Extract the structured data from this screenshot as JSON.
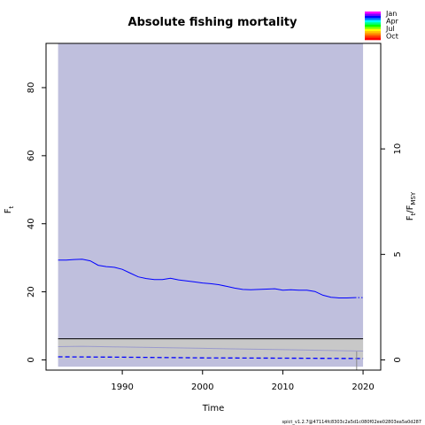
{
  "chart_data": {
    "type": "line",
    "title": "Absolute fishing mortality",
    "xlabel": "Time",
    "ylabel_left": "F",
    "ylabel_left_sub": "t",
    "ylabel_right_main": "F",
    "ylabel_right_sub1": "t",
    "ylabel_right_sep": "/F",
    "ylabel_right_sub2": "MSY",
    "xlim": [
      1980.5,
      2022.2
    ],
    "ylim": [
      -3,
      93
    ],
    "xticks": [
      1990,
      2000,
      2010,
      2020
    ],
    "yticks_left": [
      0,
      20,
      40,
      60,
      80
    ],
    "yticks_right": [
      0,
      5,
      10
    ],
    "right_axis_scale": 6.2,
    "grid": false,
    "legend_position": "top-right",
    "season_legend": [
      {
        "label": "Jan"
      },
      {
        "label": "Apr"
      },
      {
        "label": "Jul"
      },
      {
        "label": "Oct"
      }
    ],
    "season_colors": [
      "#ff0000",
      "#ff4000",
      "#ff8000",
      "#ffbf00",
      "#ffff00",
      "#80ff00",
      "#00ff00",
      "#00ff80",
      "#00ffff",
      "#0080ff",
      "#0000ff",
      "#8000ff",
      "#ff00ff"
    ],
    "ci_band": {
      "x_start": 1982,
      "x_end": 2020,
      "lower": -2,
      "upper": 93,
      "color": "#bfbfdd"
    },
    "f_msy_line": {
      "y": 6.2,
      "color": "#000000"
    },
    "f_msy_band": {
      "lower": 0.3,
      "upper": 6.2,
      "color": "#c8c8c8"
    },
    "series": [
      {
        "name": "",
        "color": "#0000ff",
        "style": "solid",
        "x": [
          1982,
          1983,
          1984,
          1985,
          1986,
          1987,
          1988,
          1989,
          1990,
          1991,
          1992,
          1993,
          1994,
          1995,
          1996,
          1997,
          1998,
          1999,
          2000,
          2001,
          2002,
          2003,
          2004,
          2005,
          2006,
          2007,
          2008,
          2009,
          2010,
          2011,
          2012,
          2013,
          2014,
          2015,
          2016,
          2017,
          2018,
          2019
        ],
        "values": [
          29.3,
          29.3,
          29.5,
          29.6,
          29.1,
          27.8,
          27.4,
          27.2,
          26.6,
          25.5,
          24.4,
          23.9,
          23.6,
          23.6,
          24.0,
          23.5,
          23.2,
          22.9,
          22.6,
          22.4,
          22.1,
          21.6,
          21.1,
          20.7,
          20.6,
          20.7,
          20.8,
          20.9,
          20.5,
          20.6,
          20.5,
          20.5,
          20.1,
          19.0,
          18.4,
          18.2,
          18.2,
          18.3
        ]
      },
      {
        "name": "",
        "color": "#0000ff",
        "style": "dotted",
        "x": [
          2019,
          2020
        ],
        "values": [
          18.3,
          18.3
        ]
      },
      {
        "name": "",
        "color": "#0000ff",
        "style": "dashed",
        "x": [
          1982,
          1990,
          2000,
          2010,
          2020
        ],
        "values": [
          0.9,
          0.8,
          0.6,
          0.5,
          0.4
        ]
      },
      {
        "name": "",
        "color": "#9a9acc",
        "style": "solid",
        "x": [
          1982,
          1985,
          1990,
          2000,
          2010,
          2020
        ],
        "values": [
          3.9,
          4.0,
          3.8,
          3.4,
          3.0,
          2.6
        ]
      }
    ],
    "vline": {
      "x": 2019.2,
      "color": "#888888"
    }
  },
  "footer": "spict_v1.2.7@47114fc8303c2a5d1c080f02ee02803ea5a0d287"
}
